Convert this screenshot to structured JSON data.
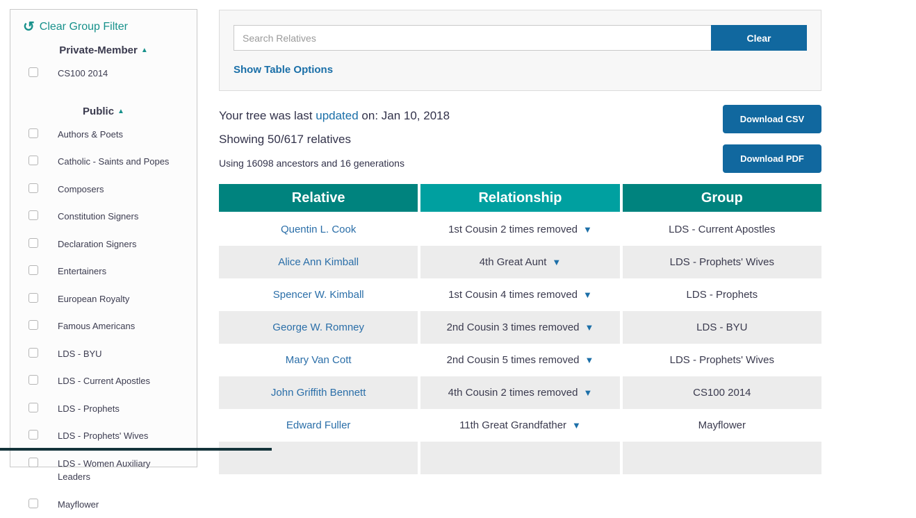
{
  "sidebar": {
    "clear_filter_label": "Clear Group Filter",
    "sections": [
      {
        "title": "Private-Member",
        "items": [
          "CS100 2014"
        ]
      },
      {
        "title": "Public",
        "items": [
          "Authors & Poets",
          "Catholic - Saints and Popes",
          "Composers",
          "Constitution Signers",
          "Declaration Signers",
          "Entertainers",
          "European Royalty",
          "Famous Americans",
          "LDS - BYU",
          "LDS - Current Apostles",
          "LDS - Prophets",
          "LDS - Prophets' Wives",
          "LDS - Women Auxiliary Leaders",
          "Mayflower"
        ]
      }
    ]
  },
  "search": {
    "placeholder": "Search Relatives",
    "clear_label": "Clear",
    "options_label": "Show Table Options"
  },
  "summary": {
    "updated_prefix": "Your tree was last ",
    "updated_link": "updated",
    "updated_suffix": " on: Jan 10, 2018",
    "showing": "Showing 50/617 relatives",
    "using": "Using 16098 ancestors and 16 generations"
  },
  "downloads": {
    "csv": "Download CSV",
    "pdf": "Download PDF"
  },
  "table": {
    "headers": [
      "Relative",
      "Relationship",
      "Group"
    ],
    "rows": [
      {
        "relative": "Quentin L. Cook",
        "relationship": "1st Cousin 2 times removed",
        "group": "LDS - Current Apostles"
      },
      {
        "relative": "Alice Ann Kimball",
        "relationship": "4th Great Aunt",
        "group": "LDS - Prophets' Wives"
      },
      {
        "relative": "Spencer W. Kimball",
        "relationship": "1st Cousin 4 times removed",
        "group": "LDS - Prophets"
      },
      {
        "relative": "George W. Romney",
        "relationship": "2nd Cousin 3 times removed",
        "group": "LDS - BYU"
      },
      {
        "relative": "Mary Van Cott",
        "relationship": "2nd Cousin 5 times removed",
        "group": "LDS - Prophets' Wives"
      },
      {
        "relative": "John Griffith Bennett",
        "relationship": "4th Cousin 2 times removed",
        "group": "CS100 2014"
      },
      {
        "relative": "Edward Fuller",
        "relationship": "11th Great Grandfather",
        "group": "Mayflower"
      }
    ]
  },
  "icons": {
    "clear_filter": "undo-circular-arrow-icon",
    "section_collapse": "triangle-up-icon",
    "relationship_dropdown": "triangle-down-icon"
  },
  "colors": {
    "teal_header": "#00837E",
    "teal_header_highlight": "#00A0A0",
    "teal_accent": "#17918B",
    "button_blue": "#11689F",
    "link_blue": "#1A6FA8",
    "row_alt_gray": "#ECECEC"
  }
}
